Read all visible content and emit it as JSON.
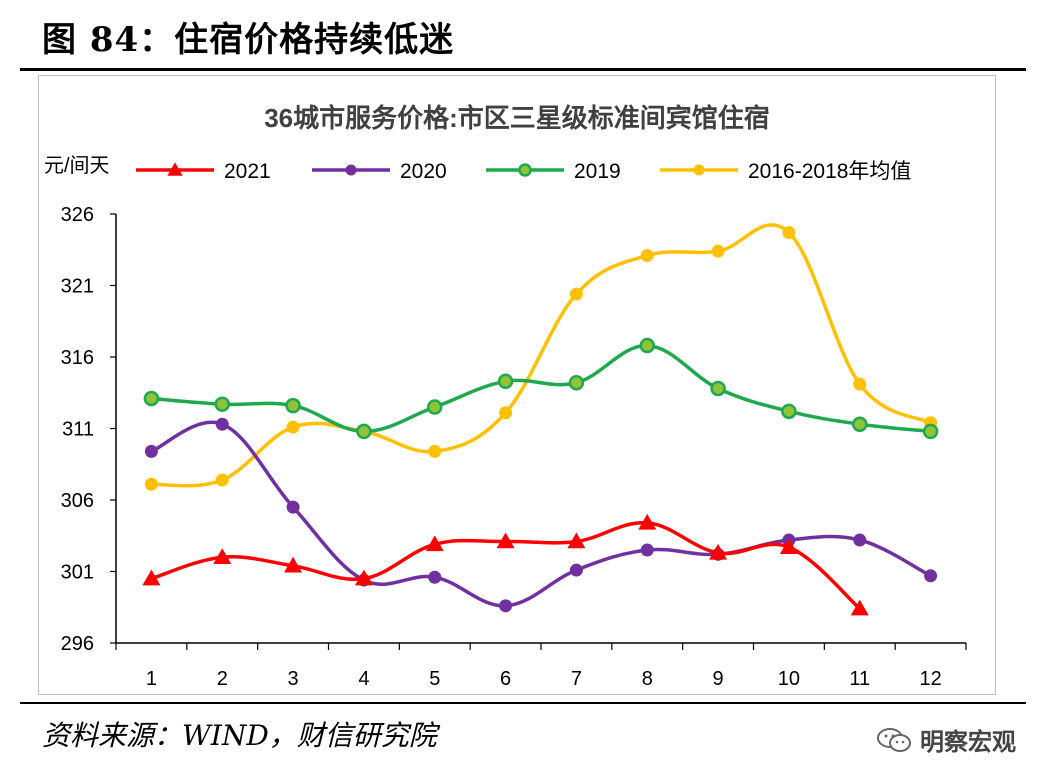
{
  "figure": {
    "title": "图 84：住宿价格持续低迷",
    "source": "资料来源：WIND，财信研究院",
    "watermark": "明察宏观"
  },
  "colors": {
    "s2021": "#ff0000",
    "s2020": "#7030a0",
    "s2019": "#1fa84d",
    "s2019_marker_inner": "#8fc43a",
    "avg": "#ffc000"
  },
  "chart_data": {
    "type": "line",
    "title": "36城市服务价格:市区三星级标准间宾馆住宿",
    "ylabel": "元/间天",
    "x": [
      1,
      2,
      3,
      4,
      5,
      6,
      7,
      8,
      9,
      10,
      11,
      12
    ],
    "xticks": [
      "1",
      "2",
      "3",
      "4",
      "5",
      "6",
      "7",
      "8",
      "9",
      "10",
      "11",
      "12"
    ],
    "yticks": [
      "296",
      "301",
      "306",
      "311",
      "316",
      "321",
      "326"
    ],
    "ylim": [
      296,
      326
    ],
    "legend_position": "top",
    "series": [
      {
        "name": "2021",
        "marker": "triangle",
        "values": [
          300.5,
          302.0,
          301.4,
          300.5,
          302.9,
          303.1,
          303.1,
          304.4,
          302.3,
          302.7,
          298.4,
          null
        ]
      },
      {
        "name": "2020",
        "marker": "circle",
        "values": [
          309.4,
          311.3,
          305.5,
          300.4,
          300.6,
          298.6,
          301.1,
          302.5,
          302.2,
          303.2,
          303.2,
          300.7
        ]
      },
      {
        "name": "2019",
        "marker": "circle-ring",
        "values": [
          313.1,
          312.7,
          312.6,
          310.8,
          312.5,
          314.3,
          314.2,
          316.8,
          313.8,
          312.2,
          311.3,
          310.8
        ]
      },
      {
        "name": "2016-2018年均值",
        "marker": "circle",
        "values": [
          307.1,
          307.4,
          311.1,
          310.8,
          309.4,
          312.1,
          320.4,
          323.1,
          323.4,
          324.7,
          314.1,
          311.4
        ]
      }
    ]
  }
}
